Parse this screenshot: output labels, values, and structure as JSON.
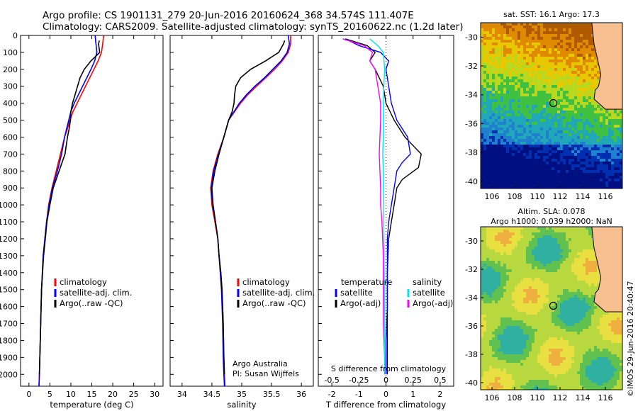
{
  "header": {
    "line1": "Argo profile: CS 1901131_279 20-Jun-2016 20160624_368 34.574S 111.407E",
    "line2": "Climatology: CARS2009. Satellite-adjusted climatology: synTS_20160622.nc (1.2d later)"
  },
  "colors": {
    "climatology": "#ff0000",
    "satellite": "#0000ff",
    "argo": "#000000",
    "satellite_s": "#00e5ee",
    "argo_s": "#ff00ff"
  },
  "chart_data": [
    {
      "type": "line",
      "xlabel": "temperature (deg C)",
      "ylabel": "",
      "xlim": [
        -2,
        32
      ],
      "ylim": [
        2070,
        0
      ],
      "xticks": [
        0,
        5,
        10,
        15,
        20,
        25,
        30
      ],
      "yticks": [
        0,
        100,
        200,
        300,
        400,
        500,
        600,
        700,
        800,
        900,
        1000,
        1100,
        1200,
        1300,
        1400,
        1500,
        1600,
        1700,
        1800,
        1900,
        2000
      ],
      "legend": [
        "climatology",
        "satellite-adj. clim.",
        "Argo(..raw -QC)"
      ],
      "series": [
        {
          "name": "climatology",
          "color": "#ff0000",
          "x": [
            17.8,
            17.6,
            17.3,
            16.5,
            15.5,
            14.5,
            13.5,
            12.5,
            11.5,
            10.5,
            9.8,
            9.2,
            8.5,
            7.5,
            6.5,
            5.5,
            4.7,
            4.2,
            3.8,
            3.4,
            3.0,
            2.8,
            2.6,
            2.5,
            2.4
          ],
          "y": [
            0,
            50,
            100,
            150,
            200,
            250,
            300,
            350,
            400,
            450,
            500,
            550,
            600,
            700,
            800,
            900,
            1000,
            1100,
            1200,
            1300,
            1500,
            1700,
            1900,
            2000,
            2070
          ]
        },
        {
          "name": "satellite-adj. clim.",
          "color": "#0000ff",
          "x": [
            15.8,
            16.0,
            16.2,
            15.7,
            14.8,
            13.8,
            12.8,
            11.8,
            10.8,
            10.0,
            9.5,
            9.0,
            8.5,
            7.8,
            6.8,
            5.6,
            4.8,
            4.2,
            3.8,
            3.4,
            3.0,
            2.8,
            2.6,
            2.5,
            2.4
          ],
          "y": [
            0,
            50,
            100,
            150,
            200,
            250,
            300,
            350,
            400,
            450,
            500,
            550,
            600,
            700,
            800,
            900,
            1000,
            1100,
            1200,
            1300,
            1500,
            1700,
            1900,
            2000,
            2070
          ]
        },
        {
          "name": "Argo(..raw -QC)",
          "color": "#000000",
          "x": [
            16.8,
            16.6,
            16.9,
            14.8,
            13.2,
            12.2,
            11.6,
            11.0,
            10.4,
            10.0,
            9.9,
            9.6,
            9.2,
            8.6,
            7.2,
            5.8,
            5.0,
            4.3,
            3.9,
            3.5,
            3.0,
            2.8,
            2.6,
            2.5
          ],
          "y": [
            30,
            50,
            100,
            150,
            200,
            250,
            300,
            350,
            400,
            450,
            500,
            550,
            600,
            700,
            800,
            900,
            1000,
            1100,
            1200,
            1300,
            1500,
            1700,
            1900,
            2000
          ]
        }
      ]
    },
    {
      "type": "line",
      "xlabel": "salinity",
      "xlim": [
        33.8,
        36.2
      ],
      "ylim": [
        2070,
        0
      ],
      "xticks": [
        34,
        34.5,
        35,
        35.5,
        36
      ],
      "legend": [
        "climatology",
        "satellite-adj. clim.",
        "Argo(..raw -QC)"
      ],
      "annotation": [
        "Argo Australia",
        "PI: Susan Wijffels"
      ],
      "series": [
        {
          "name": "climatology",
          "color": "#ff0000",
          "x": [
            35.82,
            35.82,
            35.78,
            35.68,
            35.55,
            35.4,
            35.25,
            35.1,
            34.98,
            34.88,
            34.78,
            34.7,
            34.6,
            34.52,
            34.48,
            34.5,
            34.55,
            34.6,
            34.62,
            34.65,
            34.67,
            34.69,
            34.7,
            34.71,
            34.72
          ],
          "y": [
            0,
            50,
            100,
            150,
            200,
            250,
            300,
            350,
            400,
            450,
            500,
            600,
            700,
            800,
            900,
            1000,
            1100,
            1200,
            1300,
            1400,
            1500,
            1700,
            1900,
            2000,
            2070
          ]
        },
        {
          "name": "satellite-adj. clim.",
          "color": "#0000ff",
          "x": [
            35.78,
            35.8,
            35.76,
            35.66,
            35.52,
            35.38,
            35.22,
            35.08,
            34.96,
            34.87,
            34.78,
            34.7,
            34.61,
            34.53,
            34.49,
            34.51,
            34.56,
            34.6,
            34.62,
            34.64,
            34.66,
            34.68,
            34.69,
            34.7,
            34.71
          ],
          "y": [
            0,
            50,
            100,
            150,
            200,
            250,
            300,
            350,
            400,
            450,
            500,
            600,
            700,
            800,
            900,
            1000,
            1100,
            1200,
            1300,
            1400,
            1500,
            1700,
            1900,
            2000,
            2070
          ]
        },
        {
          "name": "Argo(..raw -QC)",
          "color": "#000000",
          "x": [
            35.72,
            35.7,
            35.62,
            35.4,
            35.15,
            34.98,
            34.9,
            34.88,
            34.87,
            34.84,
            34.78,
            34.7,
            34.62,
            34.55,
            34.5,
            34.52,
            34.56,
            34.6,
            34.62,
            34.65,
            34.67,
            34.69,
            34.7,
            34.71
          ],
          "y": [
            30,
            50,
            100,
            150,
            200,
            250,
            300,
            350,
            400,
            450,
            500,
            600,
            700,
            800,
            900,
            1000,
            1100,
            1200,
            1300,
            1400,
            1500,
            1700,
            1900,
            2000
          ]
        }
      ]
    },
    {
      "type": "line",
      "xlabel": "T difference from climatology",
      "xlabel_top": "S difference from climatology",
      "xlim": [
        -2.5,
        2.5
      ],
      "xticks": [
        -2,
        -1,
        0,
        1,
        2
      ],
      "xticks_s": [
        "-0.5",
        "-0.25",
        "0",
        "0.25",
        "0.5"
      ],
      "ylim": [
        2070,
        0
      ],
      "legend_left_title": "temperature",
      "legend_right_title": "salinity",
      "legend_left": [
        "satellite",
        "Argo(-adj)"
      ],
      "legend_right": [
        "satellite",
        "Argo(-adj)"
      ],
      "series": [
        {
          "name": "satellite",
          "color": "#0000ff",
          "x": [
            -1.5,
            -1.0,
            -0.2,
            0.1,
            0.0,
            0.1,
            0.2,
            0.4,
            0.8,
            0.9,
            0.6,
            0.4,
            0.3,
            0.2,
            0.1,
            0.05,
            0.05,
            0.05,
            0.0,
            0.0
          ],
          "y": [
            20,
            60,
            100,
            150,
            200,
            300,
            400,
            500,
            600,
            700,
            750,
            800,
            900,
            1000,
            1100,
            1200,
            1400,
            1600,
            1800,
            2000
          ]
        },
        {
          "name": "Argo(-adj)",
          "color": "#000000",
          "x": [
            -1.5,
            -0.7,
            -0.4,
            -0.6,
            -0.4,
            -0.1,
            0.0,
            0.3,
            0.7,
            1.3,
            1.2,
            0.6,
            0.4,
            0.3,
            0.2,
            0.1,
            0.05,
            0.05,
            0.05,
            0.05
          ],
          "y": [
            20,
            60,
            100,
            150,
            200,
            300,
            400,
            500,
            600,
            700,
            780,
            850,
            900,
            1000,
            1100,
            1200,
            1400,
            1600,
            1800,
            2000
          ]
        },
        {
          "name": "satellite",
          "color": "#00e5ee",
          "x": [
            -0.6,
            -0.3,
            -0.1,
            -0.05,
            -0.08,
            -0.1,
            -0.1,
            -0.1,
            -0.12,
            -0.1,
            -0.1,
            -0.08,
            -0.08,
            -0.07,
            -0.06,
            -0.05,
            -0.05,
            -0.04
          ],
          "y": [
            20,
            60,
            100,
            200,
            300,
            400,
            500,
            600,
            700,
            800,
            900,
            1000,
            1100,
            1300,
            1500,
            1700,
            1900,
            2000
          ]
        },
        {
          "name": "Argo(-adj)",
          "color": "#ff00ff",
          "x": [
            -1.6,
            -0.8,
            -0.5,
            -0.6,
            -0.4,
            -0.3,
            -0.2,
            -0.2,
            -0.25,
            -0.2,
            -0.2,
            -0.15,
            -0.1,
            -0.1,
            -0.1,
            -0.05,
            -0.05
          ],
          "y": [
            20,
            60,
            100,
            150,
            200,
            300,
            400,
            500,
            700,
            900,
            1000,
            1100,
            1300,
            1500,
            1700,
            1900,
            2000
          ]
        }
      ]
    },
    {
      "type": "heatmap",
      "title": "sat. SST: 16.1  Argo: 17.3",
      "xticks": [
        106,
        108,
        110,
        112,
        114,
        116
      ],
      "yticks": [
        -30,
        -32,
        -34,
        -36,
        -38,
        -40
      ],
      "xlim": [
        105,
        117.5
      ],
      "ylim": [
        -29,
        -40.5
      ],
      "marker": {
        "lon": 111.407,
        "lat": -34.574
      }
    },
    {
      "type": "heatmap",
      "title": "Altim. SLA: 0.078",
      "subtitle": "Argo h1000: 0.039 h2000: NaN",
      "xticks": [
        106,
        108,
        110,
        112,
        114,
        116
      ],
      "yticks": [
        -30,
        -32,
        -34,
        -36,
        -38,
        -40
      ],
      "xlim": [
        105,
        117.5
      ],
      "ylim": [
        -29,
        -40.5
      ],
      "marker": {
        "lon": 111.407,
        "lat": -34.574
      }
    }
  ],
  "footer": {
    "credit": "©IMOS 29-Jun-2016 20:40:47"
  }
}
